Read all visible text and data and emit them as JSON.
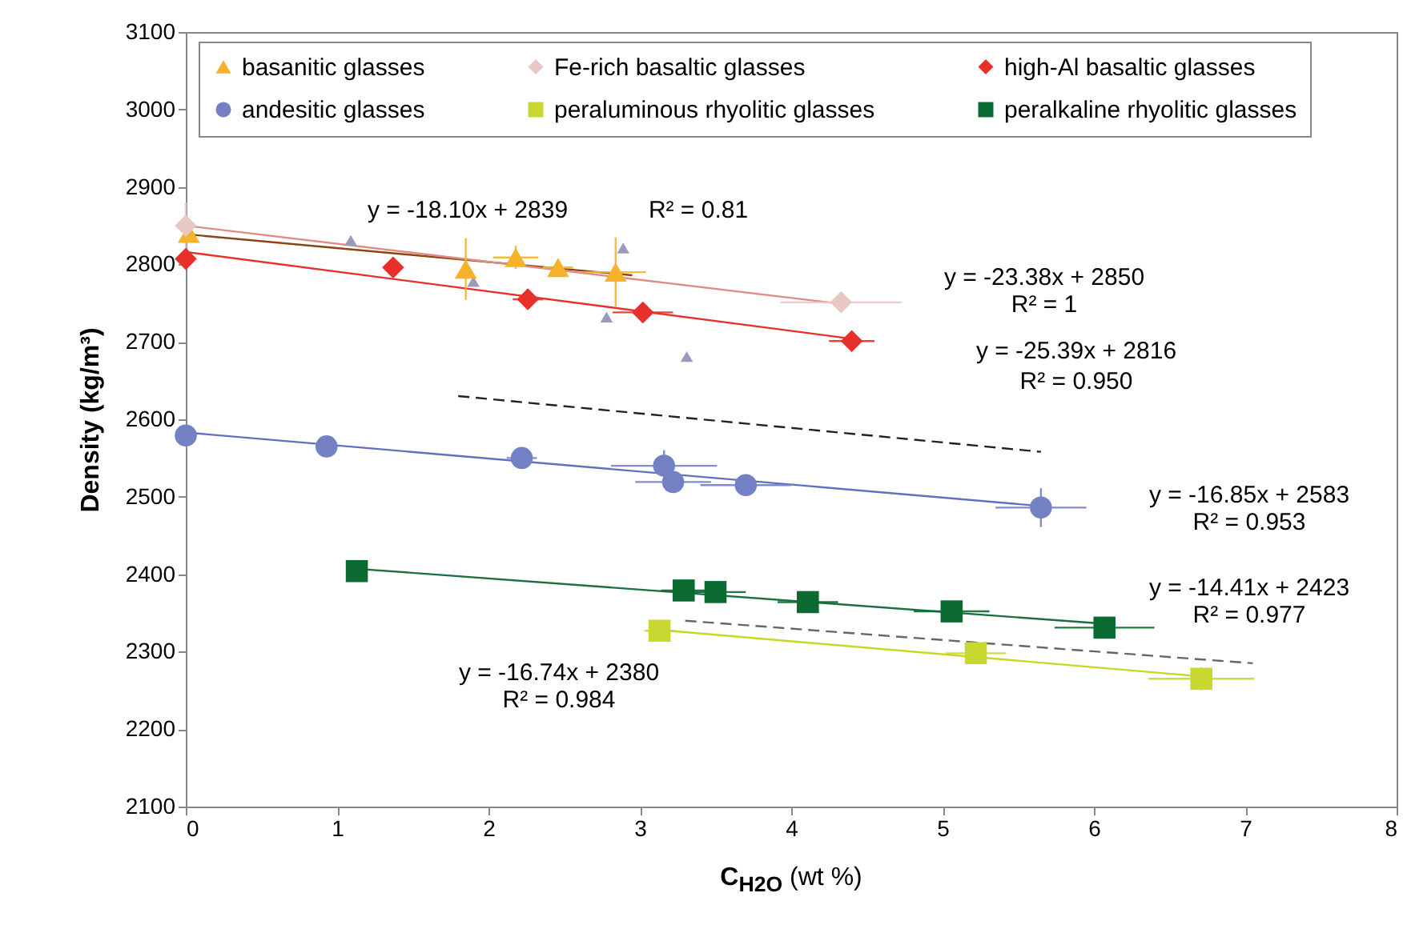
{
  "chart_data": {
    "type": "scatter",
    "xlabel": "C$_{H2O}$ (wt %)",
    "ylabel": "Density (kg/m³)",
    "xlim": [
      0,
      8
    ],
    "xticks": [
      0,
      1,
      2,
      3,
      4,
      5,
      6,
      7,
      8
    ],
    "ylim": [
      2100,
      3100
    ],
    "yticks": [
      2100,
      2200,
      2300,
      2400,
      2500,
      2600,
      2700,
      2800,
      2900,
      3000,
      3100
    ],
    "legend": "top",
    "series": [
      {
        "color": "#9a9aba",
        "marker": "triangle",
        "x": [
          1.09,
          1.9,
          2.78,
          2.89,
          3.31
        ],
        "values": [
          2831,
          2778,
          2732,
          2821,
          2681
        ]
      },
      {
        "type": "line",
        "color": "#8b4513",
        "x": [
          0,
          2.95
        ],
        "values": [
          2839,
          2786
        ]
      },
      {
        "type": "line",
        "color": "#e08c84",
        "x": [
          0,
          4.33
        ],
        "values": [
          2850,
          2749
        ]
      },
      {
        "type": "line",
        "color": "#e8302a",
        "x": [
          0,
          4.4
        ],
        "values": [
          2816,
          2704
        ]
      },
      {
        "type": "line",
        "color": "#6070c0",
        "x": [
          0,
          5.65
        ],
        "values": [
          2583,
          2488
        ]
      },
      {
        "type": "line",
        "color": "#1a7040",
        "x": [
          1.13,
          6.07
        ],
        "values": [
          2407,
          2336
        ]
      },
      {
        "type": "line",
        "color": "#c8d820",
        "x": [
          3.13,
          6.71
        ],
        "values": [
          2328,
          2268
        ]
      },
      {
        "type": "line",
        "color": "#222222",
        "line_style": "dashed",
        "x": [
          1.8,
          5.65
        ],
        "values": [
          2630,
          2558
        ]
      },
      {
        "type": "line",
        "color": "#666666",
        "line_style": "dashed",
        "x": [
          3.3,
          7.05
        ],
        "values": [
          2340,
          2285
        ]
      },
      {
        "name": "basanitic glasses",
        "color": "#f5b22a",
        "marker": "triangle",
        "x": [
          0.02,
          1.85,
          2.18,
          2.46,
          2.84
        ],
        "values": [
          2840,
          2794,
          2809,
          2796,
          2790
        ],
        "errors": [
          null,
          40,
          15,
          null,
          45
        ],
        "xerrors": [
          null,
          null,
          0.15,
          0.1,
          0.2
        ]
      },
      {
        "name": "Fe-rich basaltic glasses",
        "color": "#e8c8c4",
        "marker": "diamond",
        "x": [
          0,
          4.33
        ],
        "values": [
          2850,
          2751
        ],
        "errors": [
          30,
          null
        ],
        "xerrors": [
          null,
          0.4
        ]
      },
      {
        "name": "high-Al basaltic glasses",
        "color": "#e8302a",
        "marker": "diamond",
        "x": [
          0,
          1.37,
          2.26,
          3.02,
          4.4
        ],
        "values": [
          2807,
          2796,
          2755,
          2738,
          2701
        ],
        "xerrors": [
          null,
          null,
          0.1,
          0.2,
          0.15
        ]
      },
      {
        "name": "andesitic glasses",
        "color": "#7480c4",
        "marker": "circle",
        "x": [
          0,
          0.93,
          2.22,
          3.16,
          3.22,
          3.7,
          5.65
        ],
        "values": [
          2579,
          2565,
          2550,
          2540,
          2519,
          2515,
          2486
        ],
        "errors": [
          null,
          null,
          null,
          20,
          null,
          null,
          25
        ],
        "xerrors": [
          null,
          null,
          0.1,
          0.35,
          0.25,
          0.3,
          0.3
        ]
      },
      {
        "name": "peraluminous rhyolitic glasses",
        "color": "#c8d830",
        "marker": "square",
        "x": [
          3.13,
          5.22,
          6.71
        ],
        "values": [
          2327,
          2298,
          2265
        ],
        "errors": [
          null,
          null,
          15
        ],
        "xerrors": [
          0.1,
          0.2,
          0.35
        ]
      },
      {
        "name": "peralkaline rhyolitic glasses",
        "color": "#0a6a32",
        "marker": "square",
        "x": [
          1.13,
          3.29,
          3.5,
          4.11,
          5.06,
          6.07
        ],
        "values": [
          2404,
          2379,
          2377,
          2364,
          2352,
          2331
        ],
        "xerrors": [
          null,
          0.15,
          0.2,
          0.2,
          0.25,
          0.33
        ]
      }
    ],
    "annotations": [
      "y = -18.10x + 2839",
      "R² = 0.81",
      "y = -23.38x + 2850",
      "R² = 1",
      "y = -25.39x + 2816",
      "R² = 0.950",
      "y = -16.85x + 2583",
      "R² = 0.953",
      "y = -14.41x + 2423",
      "R² = 0.977",
      "y = -16.74x + 2380",
      "R² = 0.984"
    ]
  }
}
